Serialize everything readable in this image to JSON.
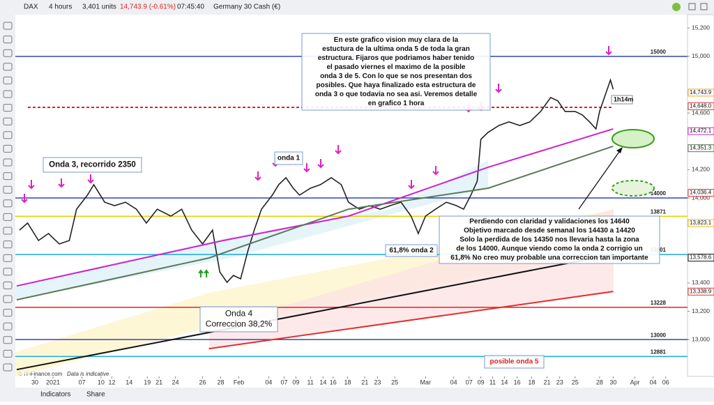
{
  "toolbar": {
    "symbol": "DAX",
    "timeframe": "4 hours",
    "units": "3,401 units",
    "price": "14,743.9 (-0.61%)",
    "time": "07:45:40",
    "instrument": "Germany 30 Cash (€)"
  },
  "bottom_bar": {
    "indicators": "Indicators",
    "share": "Share"
  },
  "footer": {
    "copyright": "© IT-Finance.com",
    "note": "Data is indicative"
  },
  "chart_data": {
    "type": "line",
    "xlim": [
      0,
      74
    ],
    "ylim": [
      12740,
      15260
    ],
    "xticks": [
      {
        "value": 2,
        "label": "30"
      },
      {
        "value": 4,
        "label": "2021"
      },
      {
        "value": 7.2,
        "label": "07"
      },
      {
        "value": 9.3,
        "label": "10"
      },
      {
        "value": 10.5,
        "label": "12"
      },
      {
        "value": 12.4,
        "label": "14"
      },
      {
        "value": 14.4,
        "label": "19"
      },
      {
        "value": 15.7,
        "label": "21"
      },
      {
        "value": 17.5,
        "label": "24"
      },
      {
        "value": 20.5,
        "label": "26"
      },
      {
        "value": 22.5,
        "label": "28"
      },
      {
        "value": 24.5,
        "label": "Feb"
      },
      {
        "value": 27.8,
        "label": "04"
      },
      {
        "value": 29.5,
        "label": "07"
      },
      {
        "value": 30.8,
        "label": "09"
      },
      {
        "value": 32.4,
        "label": "11"
      },
      {
        "value": 33.8,
        "label": "14"
      },
      {
        "value": 34.9,
        "label": "16"
      },
      {
        "value": 36.5,
        "label": "18"
      },
      {
        "value": 38.4,
        "label": "21"
      },
      {
        "value": 39.8,
        "label": "23"
      },
      {
        "value": 41.7,
        "label": "25"
      },
      {
        "value": 45.1,
        "label": "Mar"
      },
      {
        "value": 48.2,
        "label": "04"
      },
      {
        "value": 49.9,
        "label": "07"
      },
      {
        "value": 51.2,
        "label": "09"
      },
      {
        "value": 52.5,
        "label": "11"
      },
      {
        "value": 53.8,
        "label": "14"
      },
      {
        "value": 55.2,
        "label": "16"
      },
      {
        "value": 56.8,
        "label": "18"
      },
      {
        "value": 58.5,
        "label": "21"
      },
      {
        "value": 59.9,
        "label": "23"
      },
      {
        "value": 61.6,
        "label": "25"
      },
      {
        "value": 64.3,
        "label": "28"
      },
      {
        "value": 65.8,
        "label": "30"
      },
      {
        "value": 68.2,
        "label": "Apr"
      },
      {
        "value": 70.2,
        "label": "04"
      },
      {
        "value": 71.6,
        "label": "06"
      }
    ],
    "yticks": [
      {
        "value": 15200,
        "label": "15,200"
      },
      {
        "value": 15000,
        "label": "15,000"
      },
      {
        "value": 14600,
        "label": "14,600"
      },
      {
        "value": 14200,
        "label": "14,200"
      },
      {
        "value": 14000,
        "label": "14,000"
      },
      {
        "value": 13400,
        "label": "13,400"
      },
      {
        "value": 13200,
        "label": "13,200"
      },
      {
        "value": 13000,
        "label": "13,000"
      }
    ],
    "series": [
      {
        "color": "#222222",
        "x": [
          0.3,
          1.2,
          2.4,
          3.5,
          4.7,
          5.8,
          6.6,
          7.8,
          8.5,
          9.7,
          10.8,
          12.0,
          13.2,
          14.3,
          15.5,
          17.0,
          18.2,
          19.3,
          20.5,
          21.6,
          22.4,
          23.2,
          23.9,
          24.7,
          25.5,
          26.2,
          27.0,
          28.2,
          28.9,
          29.7,
          30.5,
          31.2,
          32.4,
          33.5,
          34.7,
          35.8,
          36.6,
          37.8,
          38.9,
          40.1,
          41.2,
          42.4,
          43.5,
          44.3,
          45.1,
          46.2,
          47.4,
          48.5,
          49.3,
          50.1,
          50.8,
          51.2,
          52.0,
          53.2,
          54.3,
          55.5,
          56.6,
          57.8,
          58.9,
          59.7,
          60.5,
          61.6,
          62.4,
          63.2,
          63.9,
          64.3,
          65.1,
          65.5,
          65.8
        ],
        "values": [
          13773,
          13823,
          13700,
          13749,
          13675,
          13700,
          13921,
          14020,
          14094,
          13970,
          13946,
          13970,
          13921,
          13823,
          13921,
          13872,
          13921,
          13773,
          13675,
          13773,
          13478,
          13404,
          13453,
          13429,
          13626,
          13773,
          13921,
          14020,
          14094,
          14143,
          14069,
          14020,
          14069,
          14094,
          14143,
          14094,
          13970,
          13921,
          13946,
          13921,
          13946,
          13970,
          13872,
          13749,
          13872,
          13921,
          13970,
          13946,
          13921,
          14020,
          14118,
          14414,
          14463,
          14512,
          14537,
          14512,
          14537,
          14611,
          14709,
          14685,
          14611,
          14611,
          14586,
          14537,
          14488,
          14611,
          14759,
          14833,
          14768
        ]
      },
      {
        "color": "#cc22cc",
        "x": [
          0,
          22.8,
          36.6,
          52.0,
          65.8
        ],
        "values": [
          13379,
          13700,
          13872,
          14217,
          14488
        ]
      },
      {
        "color": "#5a7a5a",
        "x": [
          0,
          21.2,
          36.6,
          52.0,
          65.8
        ],
        "values": [
          13281,
          13576,
          13921,
          14069,
          14365
        ]
      },
      {
        "color": "#111111",
        "x": [
          0,
          65.8
        ],
        "values": [
          12788,
          13601
        ]
      },
      {
        "color": "#e03030",
        "x": [
          21.2,
          65.8
        ],
        "values": [
          12936,
          13340
        ]
      }
    ],
    "levels": [
      {
        "value": 15000,
        "color": "#3344bb"
      },
      {
        "value": 14000,
        "color": "#3344bb"
      },
      {
        "value": 13871,
        "color": "#e8d000"
      },
      {
        "value": 13601,
        "color": "#19a8e0"
      },
      {
        "value": 13228,
        "color": "#dd2222"
      },
      {
        "value": 13000,
        "color": "#3344bb"
      },
      {
        "value": 12881,
        "color": "#19a8e0"
      }
    ],
    "dashed_levels": [
      14640
    ],
    "price_tags": [
      {
        "value": 14743.9,
        "label": "14,743.9",
        "color": "#f5a623"
      },
      {
        "value": 14648.0,
        "label": "14,648.0",
        "color": "#e03030"
      },
      {
        "value": 14472.1,
        "label": "14,472.1",
        "color": "#cc22cc"
      },
      {
        "value": 14351.3,
        "label": "14,351.3",
        "color": "#5a7a5a"
      },
      {
        "value": 14036.4,
        "label": "14,036.4",
        "color": "#e03030"
      },
      {
        "value": 13823.1,
        "label": "13,823.1",
        "color": "#e8c000"
      },
      {
        "value": 13578.6,
        "label": "13,578.6",
        "color": "#111111"
      },
      {
        "value": 13338.9,
        "label": "13,338.9",
        "color": "#e03030"
      }
    ],
    "timer": "1h14m",
    "annotations": [
      {
        "lines": [
          "En este grafico vision muy clara de la",
          "estuctura de la ultima onda 5 de toda la gran",
          "estructura. Fijaros que podriamos haber tenido",
          "el pasado viernes el maximo de la posible",
          "onda 3 de 5. Con lo que se nos presentan dos",
          "posibles. Que haya finalizado esta estructura de",
          "onda 3 o que todavia  no sea asi. Veremos detalle",
          "en grafico 1 hora"
        ]
      },
      {
        "lines": [
          "Onda 3, recorrido 2350"
        ]
      },
      {
        "lines": [
          "onda 1"
        ]
      },
      {
        "lines": [
          "61,8% onda 2"
        ]
      },
      {
        "lines": [
          "Onda 4",
          "Correccion 38,2%"
        ]
      },
      {
        "lines": [
          "Perdiendo con claridad y validaciones los 14640",
          "Objetivo marcado desde semanal los 14430 a 14420",
          "Solo la perdida de los 14350 nos llevaria hasta la zona",
          "de los 14000. Aunque viendo como la onda 2 corrigio un",
          "61,8% No creo muy probable una correccion tan importante"
        ]
      },
      {
        "lines": [
          "posible onda 5"
        ]
      }
    ]
  }
}
